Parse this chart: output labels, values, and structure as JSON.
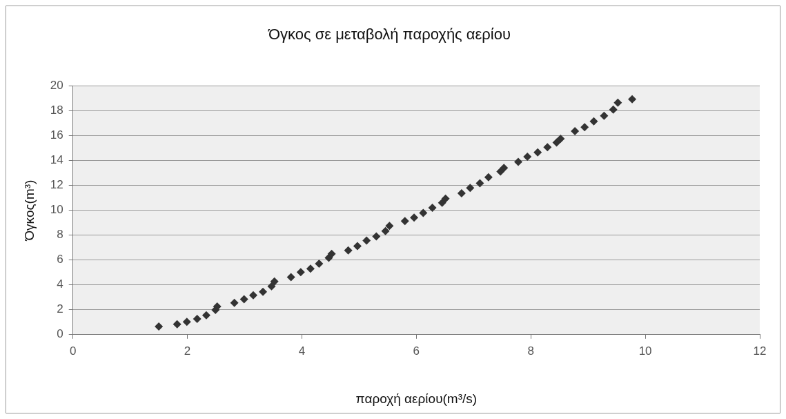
{
  "chart_data": {
    "type": "scatter",
    "title": "Όγκος σε μεταβολή παροχής αερίου",
    "xlabel": "παροχή αερίου(m³/s)",
    "ylabel": "Όγκος(m³)",
    "x": [
      1.5,
      1.82,
      1.99,
      2.17,
      2.33,
      2.49,
      2.52,
      2.82,
      2.99,
      3.15,
      3.32,
      3.47,
      3.52,
      3.81,
      3.98,
      4.15,
      4.3,
      4.47,
      4.52,
      4.81,
      4.97,
      5.13,
      5.3,
      5.46,
      5.53,
      5.8,
      5.96,
      6.12,
      6.28,
      6.45,
      6.51,
      6.79,
      6.94,
      7.11,
      7.26,
      7.47,
      7.53,
      7.78,
      7.94,
      8.12,
      8.29,
      8.45,
      8.52,
      8.77,
      8.94,
      9.1,
      9.28,
      9.44,
      9.52,
      9.77
    ],
    "series": [
      {
        "color": "#333333",
        "values": [
          0.65,
          0.84,
          1.03,
          1.26,
          1.56,
          1.98,
          2.27,
          2.55,
          2.84,
          3.16,
          3.45,
          3.89,
          4.27,
          4.62,
          5.03,
          5.3,
          5.7,
          6.17,
          6.5,
          6.77,
          7.12,
          7.56,
          7.89,
          8.33,
          8.74,
          9.13,
          9.41,
          9.79,
          10.2,
          10.6,
          10.93,
          11.36,
          11.79,
          12.17,
          12.65,
          13.12,
          13.41,
          13.89,
          14.3,
          14.65,
          15.07,
          15.45,
          15.75,
          16.36,
          16.68,
          17.15,
          17.6,
          18.1,
          18.65,
          18.93
        ]
      }
    ],
    "xlim": [
      0,
      12
    ],
    "xticks": [
      0,
      2,
      4,
      6,
      8,
      10,
      12
    ],
    "ylim": [
      0,
      20
    ],
    "yticks": [
      0,
      2,
      4,
      6,
      8,
      10,
      12,
      14,
      16,
      18,
      20
    ],
    "grid": "y",
    "legend": false,
    "marker": "diamond"
  }
}
